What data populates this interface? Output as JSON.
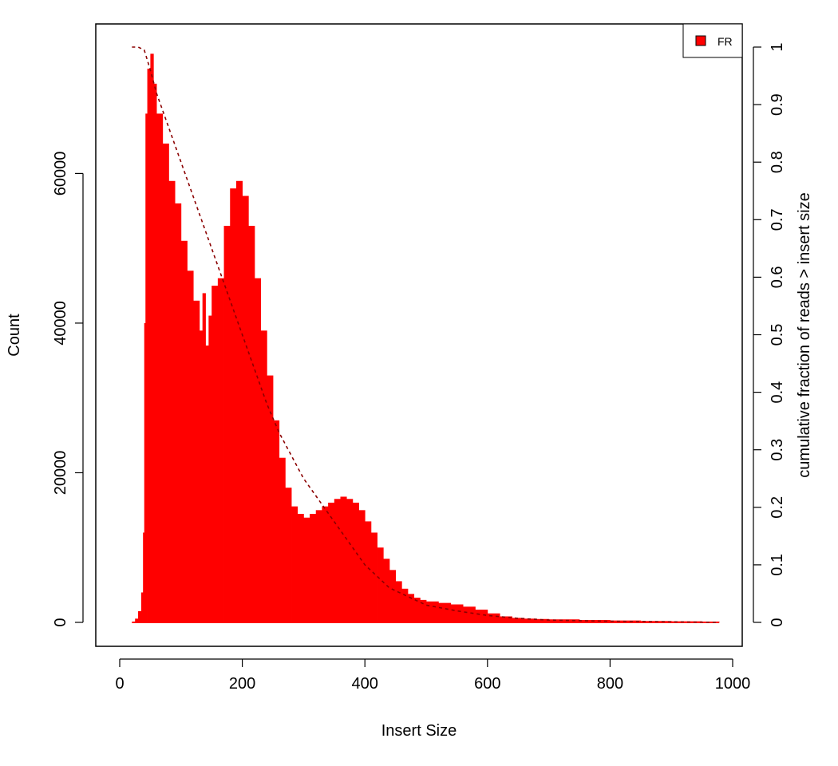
{
  "chart_data": {
    "type": "area",
    "title": "",
    "xlabel": "Insert Size",
    "ylabel": "Count",
    "ylabel_right": "cumulative fraction of reads > insert size",
    "xlim": [
      0,
      1000
    ],
    "ylim": [
      0,
      77000
    ],
    "y2lim": [
      0,
      1
    ],
    "x_ticks": [
      "0",
      "200",
      "400",
      "600",
      "800",
      "1000"
    ],
    "y_ticks": [
      "0",
      "20000",
      "40000",
      "60000"
    ],
    "y2_ticks": [
      "0",
      "0.1",
      "0.2",
      "0.3",
      "0.4",
      "0.5",
      "0.6",
      "0.7",
      "0.8",
      "0.9",
      "1"
    ],
    "legend": {
      "position": "top-right",
      "entries": [
        {
          "name": "FR",
          "color": "#ff0000"
        }
      ]
    },
    "grid": false,
    "series": [
      {
        "name": "FR",
        "color": "#ff0000",
        "style": "histogram",
        "x": [
          20,
          25,
          30,
          35,
          38,
          40,
          42,
          45,
          50,
          55,
          60,
          70,
          80,
          90,
          100,
          110,
          120,
          130,
          135,
          140,
          145,
          150,
          160,
          170,
          180,
          190,
          200,
          210,
          220,
          230,
          240,
          250,
          260,
          270,
          280,
          290,
          300,
          310,
          320,
          330,
          340,
          350,
          360,
          370,
          380,
          390,
          400,
          410,
          420,
          430,
          440,
          450,
          460,
          470,
          480,
          490,
          500,
          520,
          540,
          560,
          580,
          600,
          620,
          640,
          660,
          680,
          700,
          750,
          800,
          850,
          900,
          950,
          978
        ],
        "values": [
          0,
          500,
          1500,
          4000,
          12000,
          40000,
          68000,
          74000,
          76000,
          72000,
          68000,
          64000,
          59000,
          56000,
          51000,
          47000,
          43000,
          39000,
          44000,
          37000,
          41000,
          45000,
          46000,
          53000,
          58000,
          59000,
          57000,
          53000,
          46000,
          39000,
          33000,
          27000,
          22000,
          18000,
          15500,
          14500,
          14000,
          14500,
          15000,
          15500,
          16000,
          16500,
          16800,
          16500,
          16000,
          15000,
          13500,
          12000,
          10000,
          8500,
          7000,
          5500,
          4500,
          3800,
          3300,
          3000,
          2800,
          2600,
          2400,
          2100,
          1700,
          1200,
          800,
          600,
          500,
          450,
          400,
          320,
          250,
          180,
          140,
          100,
          60
        ]
      },
      {
        "name": "",
        "color": "#8b0000",
        "style": "dashed",
        "axis": "right",
        "x": [
          20,
          30,
          40,
          50,
          60,
          80,
          100,
          120,
          140,
          160,
          180,
          200,
          220,
          240,
          260,
          280,
          300,
          320,
          340,
          360,
          380,
          400,
          420,
          440,
          460,
          480,
          500,
          550,
          600,
          650,
          700,
          800,
          900,
          978
        ],
        "values": [
          1.0,
          1.0,
          0.995,
          0.96,
          0.92,
          0.86,
          0.8,
          0.74,
          0.68,
          0.62,
          0.56,
          0.5,
          0.44,
          0.38,
          0.33,
          0.29,
          0.25,
          0.22,
          0.19,
          0.16,
          0.13,
          0.1,
          0.08,
          0.06,
          0.05,
          0.04,
          0.03,
          0.02,
          0.012,
          0.007,
          0.004,
          0.002,
          0.001,
          0.0
        ]
      }
    ]
  }
}
